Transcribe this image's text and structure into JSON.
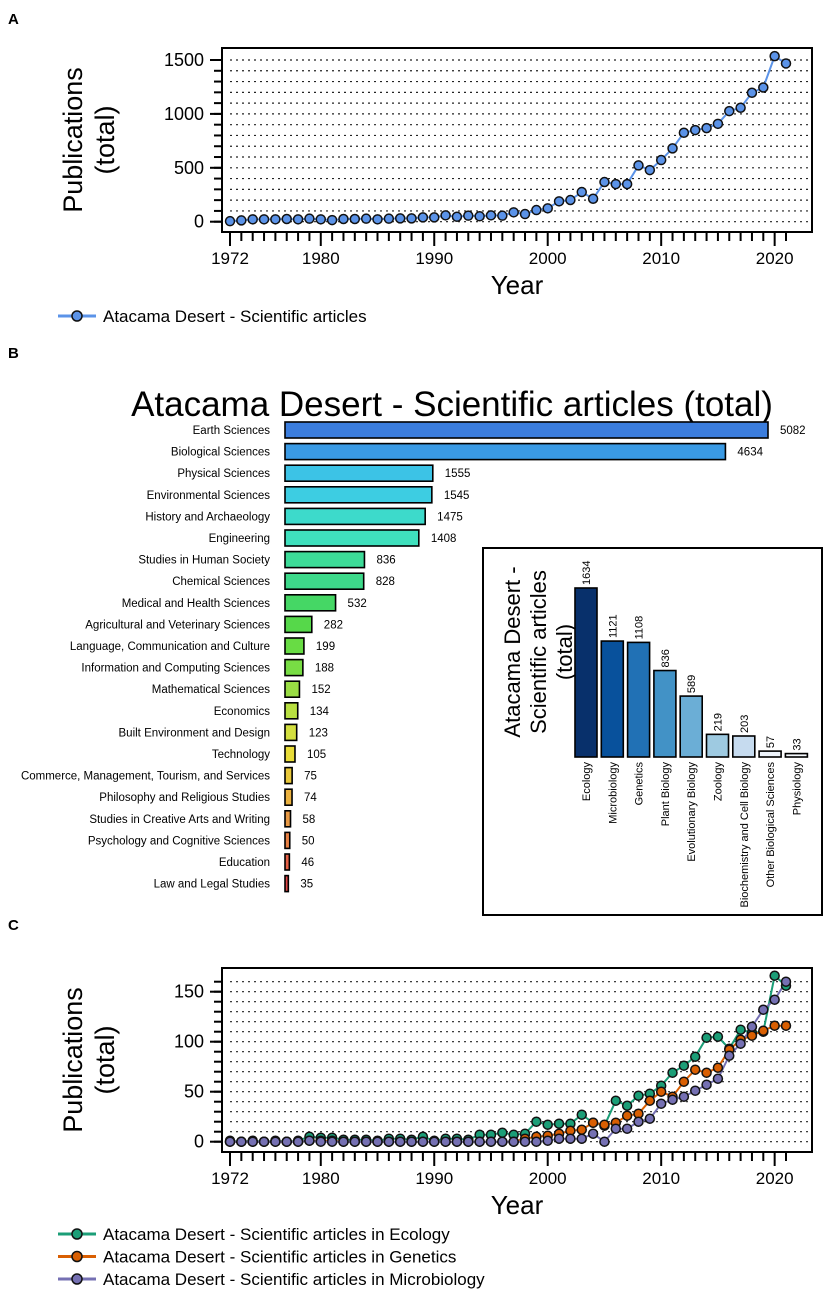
{
  "chart_data": [
    {
      "panel": "A",
      "type": "line",
      "xlabel": "Year",
      "ylabel": "Publications (total)",
      "xlim": [
        1970,
        2023
      ],
      "ylim": [
        0,
        1500
      ],
      "xticks": [
        1972,
        1980,
        1990,
        2000,
        2010,
        2020
      ],
      "yticks": [
        0,
        500,
        1000,
        1500
      ],
      "grid": true,
      "legend_position": "bottom-left",
      "series": [
        {
          "name": "Atacama Desert - Scientific articles",
          "color": "#5b93e8",
          "x": [
            1972,
            1973,
            1974,
            1975,
            1976,
            1977,
            1978,
            1979,
            1980,
            1981,
            1982,
            1983,
            1984,
            1985,
            1986,
            1987,
            1988,
            1989,
            1990,
            1991,
            1992,
            1993,
            1994,
            1995,
            1996,
            1997,
            1998,
            1999,
            2000,
            2001,
            2002,
            2003,
            2004,
            2005,
            2006,
            2007,
            2008,
            2009,
            2010,
            2011,
            2012,
            2013,
            2014,
            2015,
            2016,
            2017,
            2018,
            2019,
            2020,
            2021
          ],
          "y": [
            5,
            12,
            22,
            22,
            22,
            25,
            22,
            28,
            22,
            15,
            25,
            25,
            28,
            22,
            28,
            31,
            31,
            40,
            40,
            59,
            46,
            56,
            50,
            59,
            56,
            87,
            71,
            108,
            124,
            189,
            201,
            275,
            213,
            368,
            349,
            349,
            522,
            479,
            572,
            680,
            825,
            850,
            868,
            908,
            1026,
            1057,
            1196,
            1245,
            1536,
            1468
          ]
        }
      ]
    },
    {
      "panel": "B",
      "type": "bar",
      "orientation": "horizontal",
      "title": "Atacama Desert - Scientific articles (total)",
      "categories": [
        "Earth Sciences",
        "Biological Sciences",
        "Physical Sciences",
        "Environmental Sciences",
        "History and Archaeology",
        "Engineering",
        "Studies in Human Society",
        "Chemical Sciences",
        "Medical and Health Sciences",
        "Agricultural and Veterinary Sciences",
        "Language, Communication and Culture",
        "Information and Computing Sciences",
        "Mathematical Sciences",
        "Economics",
        "Built Environment and Design",
        "Technology",
        "Commerce, Management, Tourism, and Services",
        "Philosophy and Religious Studies",
        "Studies in Creative Arts and Writing",
        "Psychology and Cognitive Sciences",
        "Education",
        "Law and Legal Studies"
      ],
      "values": [
        5082,
        4634,
        1555,
        1545,
        1475,
        1408,
        836,
        828,
        532,
        282,
        199,
        188,
        152,
        134,
        123,
        105,
        75,
        74,
        58,
        50,
        46,
        35
      ],
      "colors": [
        "#3b7ddd",
        "#3a9ae4",
        "#3cc3e6",
        "#3dcde2",
        "#3ddacb",
        "#3fe0bd",
        "#3ddb98",
        "#3dd98a",
        "#45d765",
        "#56d84a",
        "#68dc44",
        "#78dd44",
        "#9add44",
        "#b8df40",
        "#d3df3f",
        "#e8dc38",
        "#e9c83a",
        "#eab13f",
        "#e89944",
        "#e88043",
        "#e66146",
        "#df4646"
      ]
    },
    {
      "panel": "B-inset",
      "type": "bar",
      "ylabel": "Atacama Desert - Scientific articles (total)",
      "categories": [
        "Ecology",
        "Microbiology",
        "Genetics",
        "Plant Biology",
        "Evolutionary Biology",
        "Zoology",
        "Biochemistry and Cell Biology",
        "Other Biological Sciences",
        "Physiology"
      ],
      "values": [
        1634,
        1121,
        1108,
        836,
        589,
        219,
        203,
        57,
        33
      ],
      "colors": [
        "#08306b",
        "#08519c",
        "#2171b5",
        "#4292c6",
        "#6baed6",
        "#9ecae1",
        "#c6dbef",
        "#eef4fb",
        "#f4f8fc"
      ]
    },
    {
      "panel": "C",
      "type": "line",
      "xlabel": "Year",
      "ylabel": "Publications (total)",
      "xlim": [
        1970,
        2023
      ],
      "ylim": [
        0,
        170
      ],
      "xticks": [
        1972,
        1980,
        1990,
        2000,
        2010,
        2020
      ],
      "yticks": [
        0,
        50,
        100,
        150
      ],
      "grid": true,
      "legend_position": "bottom-left",
      "x": [
        1972,
        1973,
        1974,
        1975,
        1976,
        1977,
        1978,
        1979,
        1980,
        1981,
        1982,
        1983,
        1984,
        1985,
        1986,
        1987,
        1988,
        1989,
        1990,
        1991,
        1992,
        1993,
        1994,
        1995,
        1996,
        1997,
        1998,
        1999,
        2000,
        2001,
        2002,
        2003,
        2004,
        2005,
        2006,
        2007,
        2008,
        2009,
        2010,
        2011,
        2012,
        2013,
        2014,
        2015,
        2016,
        2017,
        2018,
        2019,
        2020,
        2021
      ],
      "series": [
        {
          "name": "Atacama Desert - Scientific articles in Ecology",
          "color": "#1b9e77",
          "y": [
            1,
            0,
            1,
            0,
            1,
            0,
            1,
            5,
            4,
            4,
            2,
            2,
            2,
            1,
            3,
            3,
            2,
            5,
            1,
            3,
            3,
            2,
            7,
            7,
            9,
            7,
            8,
            20,
            17,
            18,
            18,
            27,
            19,
            16,
            41,
            36,
            46,
            48,
            56,
            69,
            76,
            85,
            104,
            105,
            93,
            112,
            109,
            110,
            166,
            156
          ]
        },
        {
          "name": "Atacama Desert - Scientific articles in Genetics",
          "color": "#d95f02",
          "y": [
            0,
            0,
            0,
            0,
            0,
            0,
            0,
            1,
            1,
            1,
            0,
            0,
            0,
            0,
            0,
            0,
            0,
            0,
            0,
            0,
            0,
            0,
            0,
            0,
            0,
            0,
            3,
            5,
            6,
            8,
            11,
            12,
            19,
            17,
            19,
            26,
            28,
            41,
            50,
            45,
            60,
            72,
            69,
            74,
            92,
            102,
            106,
            111,
            116,
            116
          ]
        },
        {
          "name": "Atacama Desert - Scientific articles in Microbiology",
          "color": "#7570b3",
          "y": [
            0,
            0,
            0,
            0,
            0,
            0,
            0,
            1,
            0,
            0,
            0,
            0,
            0,
            0,
            0,
            0,
            0,
            0,
            0,
            0,
            0,
            0,
            0,
            0,
            0,
            0,
            0,
            0,
            1,
            3,
            3,
            3,
            8,
            0,
            13,
            13,
            20,
            23,
            38,
            42,
            45,
            51,
            57,
            63,
            86,
            98,
            115,
            132,
            142,
            160
          ]
        }
      ]
    }
  ],
  "panel_labels": {
    "a": "A",
    "b": "B",
    "c": "C"
  }
}
